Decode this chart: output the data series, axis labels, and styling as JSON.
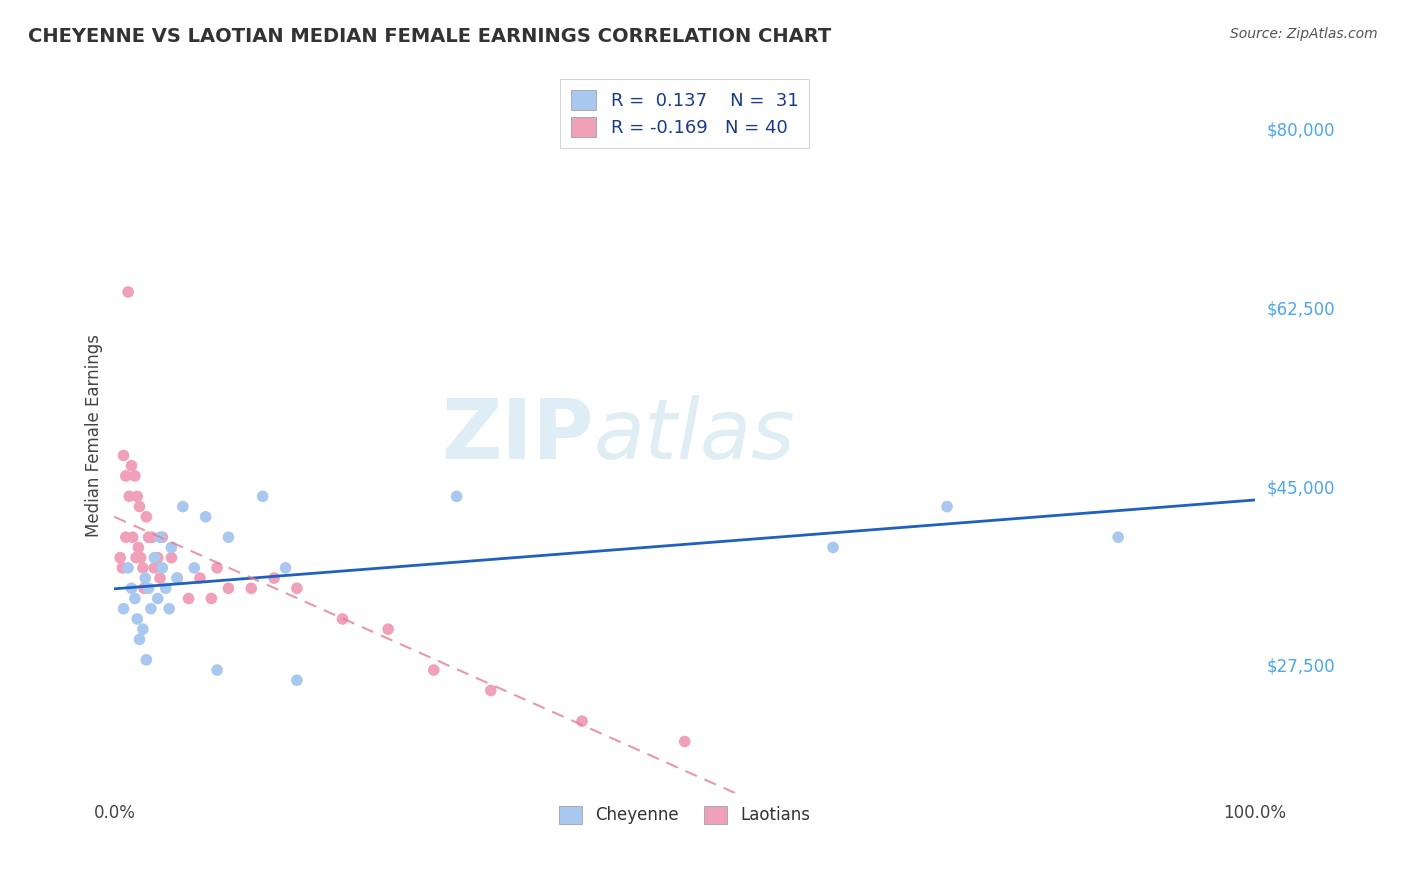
{
  "title": "CHEYENNE VS LAOTIAN MEDIAN FEMALE EARNINGS CORRELATION CHART",
  "source": "Source: ZipAtlas.com",
  "ylabel": "Median Female Earnings",
  "xlim": [
    0.0,
    1.0
  ],
  "ylim": [
    15000,
    85000
  ],
  "yticks": [
    27500,
    45000,
    62500,
    80000
  ],
  "ytick_labels": [
    "$27,500",
    "$45,000",
    "$62,500",
    "$80,000"
  ],
  "xtick_labels": [
    "0.0%",
    "100.0%"
  ],
  "background_color": "#ffffff",
  "grid_color": "#c8c8c8",
  "cheyenne_color": "#a8c8f0",
  "laotian_color": "#f0a0b8",
  "cheyenne_line_color": "#2060c0",
  "laotian_line_color": "#e08090",
  "r_cheyenne": 0.137,
  "n_cheyenne": 31,
  "r_laotian": -0.169,
  "n_laotian": 40,
  "watermark_zip": "ZIP",
  "watermark_atlas": "atlas",
  "cheyenne_scatter_x": [
    0.008,
    0.012,
    0.015,
    0.018,
    0.02,
    0.022,
    0.025,
    0.027,
    0.028,
    0.03,
    0.032,
    0.035,
    0.038,
    0.04,
    0.042,
    0.045,
    0.048,
    0.05,
    0.055,
    0.06,
    0.07,
    0.08,
    0.09,
    0.1,
    0.13,
    0.15,
    0.16,
    0.3,
    0.63,
    0.73,
    0.88
  ],
  "cheyenne_scatter_y": [
    33000,
    37000,
    35000,
    34000,
    32000,
    30000,
    31000,
    36000,
    28000,
    35000,
    33000,
    38000,
    34000,
    40000,
    37000,
    35000,
    33000,
    39000,
    36000,
    43000,
    37000,
    42000,
    27000,
    40000,
    44000,
    37000,
    26000,
    44000,
    39000,
    43000,
    40000
  ],
  "laotian_scatter_x": [
    0.005,
    0.007,
    0.008,
    0.01,
    0.01,
    0.012,
    0.013,
    0.015,
    0.016,
    0.018,
    0.019,
    0.02,
    0.021,
    0.022,
    0.023,
    0.025,
    0.026,
    0.028,
    0.03,
    0.033,
    0.035,
    0.038,
    0.04,
    0.042,
    0.05,
    0.055,
    0.065,
    0.075,
    0.085,
    0.09,
    0.1,
    0.12,
    0.14,
    0.16,
    0.2,
    0.24,
    0.28,
    0.33,
    0.41,
    0.5
  ],
  "laotian_scatter_y": [
    38000,
    37000,
    48000,
    46000,
    40000,
    64000,
    44000,
    47000,
    40000,
    46000,
    38000,
    44000,
    39000,
    43000,
    38000,
    37000,
    35000,
    42000,
    40000,
    40000,
    37000,
    38000,
    36000,
    40000,
    38000,
    36000,
    34000,
    36000,
    34000,
    37000,
    35000,
    35000,
    36000,
    35000,
    32000,
    31000,
    27000,
    25000,
    22000,
    20000
  ]
}
